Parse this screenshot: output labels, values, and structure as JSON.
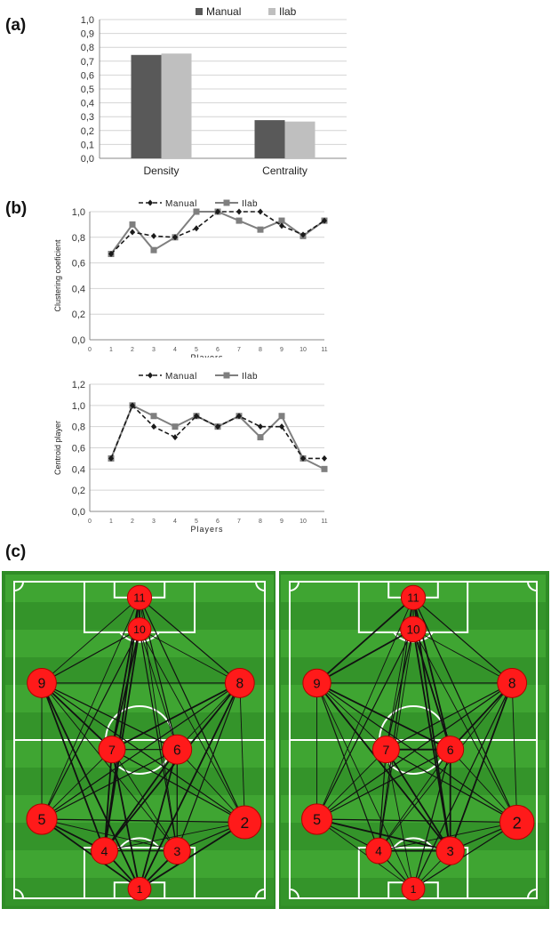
{
  "panel_labels": {
    "a": "(a)",
    "b": "(b)",
    "c": "(c)"
  },
  "colors": {
    "manual_bar": "#595959",
    "ilab_bar": "#bfbfbf",
    "manual_line": "#1a1a1a",
    "ilab_line": "#7f7f7f",
    "pitch_green": "#3a9e2c",
    "node": "#ff1a1a"
  },
  "chart_data": [
    {
      "id": "a",
      "type": "bar",
      "title": "",
      "categories": [
        "Density",
        "Centrality"
      ],
      "series": [
        {
          "name": "Manual",
          "values": [
            0.745,
            0.275
          ]
        },
        {
          "name": "Ilab",
          "values": [
            0.755,
            0.265
          ]
        }
      ],
      "ylim": [
        0,
        1.0
      ],
      "yticks": [
        "0,0",
        "0,1",
        "0,2",
        "0,3",
        "0,4",
        "0,5",
        "0,6",
        "0,7",
        "0,8",
        "0,9",
        "1,0"
      ],
      "legend": "top",
      "grid": true
    },
    {
      "id": "b1",
      "type": "line",
      "ylabel": "Clustering coeficient",
      "xlabel": "Players",
      "x": [
        1,
        2,
        3,
        4,
        5,
        6,
        7,
        8,
        9,
        10,
        11
      ],
      "xticks": [
        "0",
        "1",
        "2",
        "3",
        "4",
        "5",
        "6",
        "7",
        "8",
        "9",
        "10",
        "11"
      ],
      "series": [
        {
          "name": "Manual",
          "values": [
            0.67,
            0.84,
            0.81,
            0.8,
            0.87,
            1.0,
            1.0,
            1.0,
            0.89,
            0.82,
            0.93
          ]
        },
        {
          "name": "Ilab",
          "values": [
            0.67,
            0.9,
            0.7,
            0.8,
            1.0,
            1.0,
            0.93,
            0.86,
            0.93,
            0.81,
            0.93
          ]
        }
      ],
      "ylim": [
        0,
        1.0
      ],
      "yticks": [
        "0,0",
        "0,2",
        "0,4",
        "0,6",
        "0,8",
        "1,0"
      ],
      "legend": "top",
      "grid": true
    },
    {
      "id": "b2",
      "type": "line",
      "ylabel": "Centroid player",
      "xlabel": "Players",
      "x": [
        1,
        2,
        3,
        4,
        5,
        6,
        7,
        8,
        9,
        10,
        11
      ],
      "xticks": [
        "0",
        "1",
        "2",
        "3",
        "4",
        "5",
        "6",
        "7",
        "8",
        "9",
        "10",
        "11"
      ],
      "series": [
        {
          "name": "Manual",
          "values": [
            0.5,
            1.0,
            0.8,
            0.7,
            0.9,
            0.8,
            0.9,
            0.8,
            0.8,
            0.5,
            0.5
          ]
        },
        {
          "name": "Ilab",
          "values": [
            0.5,
            1.0,
            0.9,
            0.8,
            0.9,
            0.8,
            0.9,
            0.7,
            0.9,
            0.5,
            0.4
          ]
        }
      ],
      "ylim": [
        0,
        1.2
      ],
      "yticks": [
        "0,0",
        "0,2",
        "0,4",
        "0,6",
        "0,8",
        "1,0",
        "1,2"
      ],
      "legend": "top",
      "grid": true
    }
  ],
  "networks": [
    {
      "id": "manual-network",
      "nodes": [
        {
          "label": "1",
          "size": 0.35
        },
        {
          "label": "2",
          "size": 0.75
        },
        {
          "label": "3",
          "size": 0.5
        },
        {
          "label": "4",
          "size": 0.5
        },
        {
          "label": "5",
          "size": 0.65
        },
        {
          "label": "6",
          "size": 0.6
        },
        {
          "label": "7",
          "size": 0.5
        },
        {
          "label": "8",
          "size": 0.6
        },
        {
          "label": "9",
          "size": 0.6
        },
        {
          "label": "10",
          "size": 0.35
        },
        {
          "label": "11",
          "size": 0.4
        }
      ]
    },
    {
      "id": "ilab-network",
      "nodes": [
        {
          "label": "1",
          "size": 0.35
        },
        {
          "label": "2",
          "size": 0.8
        },
        {
          "label": "3",
          "size": 0.55
        },
        {
          "label": "4",
          "size": 0.45
        },
        {
          "label": "5",
          "size": 0.65
        },
        {
          "label": "6",
          "size": 0.5
        },
        {
          "label": "7",
          "size": 0.5
        },
        {
          "label": "8",
          "size": 0.6
        },
        {
          "label": "9",
          "size": 0.55
        },
        {
          "label": "10",
          "size": 0.45
        },
        {
          "label": "11",
          "size": 0.4
        }
      ]
    }
  ]
}
